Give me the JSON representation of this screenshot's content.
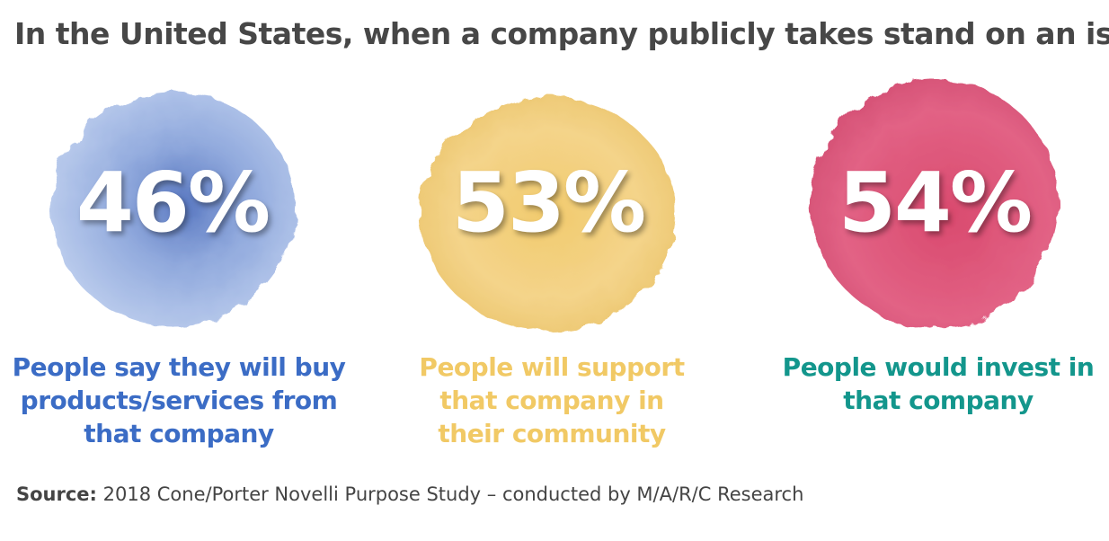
{
  "title": "In the United States, when a company publicly takes stand on an issue:",
  "stats": [
    {
      "value": "46%",
      "caption": [
        "People say they will buy",
        "products/services from",
        "that company"
      ]
    },
    {
      "value": "53%",
      "caption": [
        "People will support",
        "that company in",
        "their community"
      ]
    },
    {
      "value": "54%",
      "caption": [
        "People would invest in",
        "that company"
      ]
    }
  ],
  "source": {
    "label": "Source:",
    "text": "2018 Cone/Porter Novelli Purpose Study – conducted by M/A/R/C Research"
  }
}
